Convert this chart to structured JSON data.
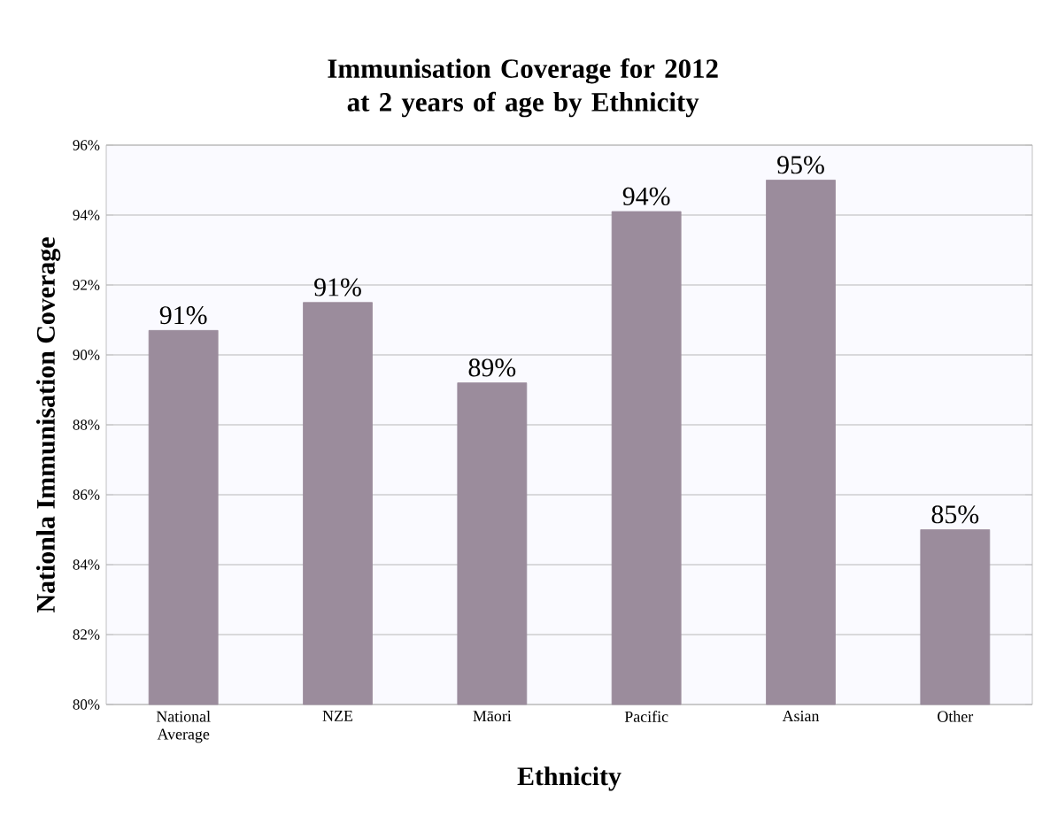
{
  "chart_data": {
    "type": "bar",
    "title": "Immunisation Coverage for 2012 at 2 years of age by Ethnicity",
    "xlabel": "Ethnicity",
    "ylabel": "Nationla Immunisation Coverage",
    "categories": [
      "National Average",
      "NZE",
      "Māori",
      "Pacific",
      "Asian",
      "Other"
    ],
    "values": [
      90.7,
      91.5,
      89.2,
      94.1,
      95.0,
      85.0
    ],
    "value_labels": [
      "91%",
      "91%",
      "89%",
      "94%",
      "95%",
      "85%"
    ],
    "color": "#9b8c9c",
    "ylim": [
      80,
      96
    ],
    "yticks": [
      {
        "value": 80,
        "label": "80%"
      },
      {
        "value": 82,
        "label": "82%"
      },
      {
        "value": 84,
        "label": "84%"
      },
      {
        "value": 86,
        "label": "86%"
      },
      {
        "value": 88,
        "label": "88%"
      },
      {
        "value": 90,
        "label": "90%"
      },
      {
        "value": 92,
        "label": "92%"
      },
      {
        "value": 94,
        "label": "94%"
      },
      {
        "value": 96,
        "label": "96%"
      }
    ],
    "grid": "y"
  }
}
